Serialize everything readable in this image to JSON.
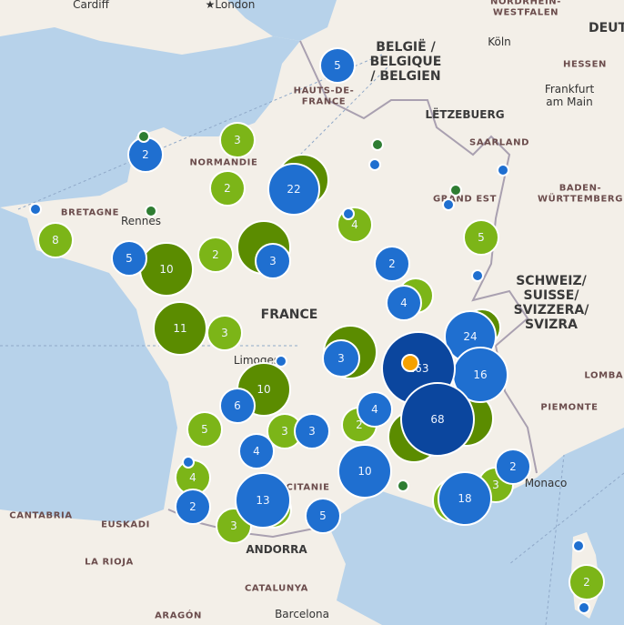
{
  "colors": {
    "sea": "#b7d2ea",
    "land": "#f3efe8",
    "blue": "#1f6fd0",
    "dark_blue": "#0b469e",
    "light_green": "#7cb518",
    "dark_green": "#5b8c00",
    "dot_green": "#2e7d32",
    "orange": "#f5a100"
  },
  "labels": {
    "cardiff": "Cardiff",
    "london": "★London",
    "nrw": "NORDRHEIN-\nWESTFALEN",
    "deut": "DEUT",
    "belgium": "BELGIË /\nBELGIQUE\n/ BELGIEN",
    "koln": "Köln",
    "hessen": "HESSEN",
    "frankfurt": "Frankfurt\nam Main",
    "hauts": "HAUTS-DE-\nFRANCE",
    "lux": "LËTZEBUERG",
    "saarland": "SAARLAND",
    "normandie": "NORMANDIE",
    "grandest": "GRAND EST",
    "baden": "BADEN-\nWÜRTTEMBERG",
    "bretagne": "BRETAGNE",
    "rennes": "Rennes",
    "france": "FRANCE",
    "swiss": "SCHWEIZ/\nSUISSE/\nSVIZZERA/\nSVIZRA",
    "limoges": "Limoges",
    "lombar": "LOMBAR",
    "piemonte": "PIEMONTE",
    "monaco": "Monaco",
    "occitanie": "OCCITANIE",
    "cantabria": "CANTABRIA",
    "euskadi": "EUSKADI",
    "andorra": "ANDORRA",
    "larioja": "LA RIOJA",
    "catalunya": "CATALUNYA",
    "aragon": "ARAGÓN",
    "barcelona": "Barcelona"
  },
  "clusters": [
    {
      "count": "5",
      "type": "blue"
    },
    {
      "count": "2",
      "type": "blue"
    },
    {
      "count": "22",
      "type": "blue"
    },
    {
      "count": "5",
      "type": "blue"
    },
    {
      "count": "3",
      "type": "blue"
    },
    {
      "count": "2",
      "type": "blue"
    },
    {
      "count": "4",
      "type": "blue"
    },
    {
      "count": "24",
      "type": "blue"
    },
    {
      "count": "16",
      "type": "blue"
    },
    {
      "count": "3",
      "type": "blue"
    },
    {
      "count": "6",
      "type": "blue"
    },
    {
      "count": "4",
      "type": "blue"
    },
    {
      "count": "3",
      "type": "blue"
    },
    {
      "count": "4",
      "type": "blue"
    },
    {
      "count": "10",
      "type": "blue"
    },
    {
      "count": "13",
      "type": "blue"
    },
    {
      "count": "2",
      "type": "blue"
    },
    {
      "count": "5",
      "type": "blue"
    },
    {
      "count": "18",
      "type": "blue"
    },
    {
      "count": "2",
      "type": "blue"
    },
    {
      "count": "163",
      "type": "dark_blue"
    },
    {
      "count": "68",
      "type": "dark_blue"
    },
    {
      "count": "3",
      "type": "light_green"
    },
    {
      "count": "2",
      "type": "light_green"
    },
    {
      "count": "8",
      "type": "light_green"
    },
    {
      "count": "4",
      "type": "light_green"
    },
    {
      "count": "5",
      "type": "light_green"
    },
    {
      "count": "2",
      "type": "light_green"
    },
    {
      "count": "3",
      "type": "light_green"
    },
    {
      "count": "5",
      "type": "light_green"
    },
    {
      "count": "3",
      "type": "light_green"
    },
    {
      "count": "2",
      "type": "light_green"
    },
    {
      "count": "4",
      "type": "light_green"
    },
    {
      "count": "3",
      "type": "light_green"
    },
    {
      "count": "2",
      "type": "light_green"
    },
    {
      "count": "3",
      "type": "light_green"
    },
    {
      "count": "10",
      "type": "dark_green"
    },
    {
      "count": "11",
      "type": "dark_green"
    },
    {
      "count": "10",
      "type": "dark_green"
    }
  ]
}
